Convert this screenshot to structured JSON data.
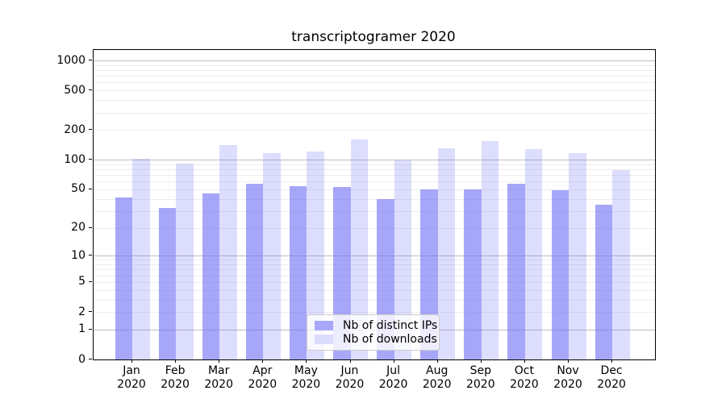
{
  "figure": {
    "title": "transcriptogramer 2020"
  },
  "legend": {
    "items": [
      {
        "label": "Nb of distinct IPs",
        "color": "#a7a7f9"
      },
      {
        "label": "Nb of downloads",
        "color": "#dcdcfc"
      }
    ]
  },
  "y_axis": {
    "tick_values": [
      0,
      1,
      2,
      5,
      10,
      20,
      50,
      100,
      200,
      500,
      1000
    ]
  },
  "x_axis": {
    "months": [
      {
        "month": "Jan",
        "year": "2020"
      },
      {
        "month": "Feb",
        "year": "2020"
      },
      {
        "month": "Mar",
        "year": "2020"
      },
      {
        "month": "Apr",
        "year": "2020"
      },
      {
        "month": "May",
        "year": "2020"
      },
      {
        "month": "Jun",
        "year": "2020"
      },
      {
        "month": "Jul",
        "year": "2020"
      },
      {
        "month": "Aug",
        "year": "2020"
      },
      {
        "month": "Sep",
        "year": "2020"
      },
      {
        "month": "Oct",
        "year": "2020"
      },
      {
        "month": "Nov",
        "year": "2020"
      },
      {
        "month": "Dec",
        "year": "2020"
      }
    ]
  },
  "chart_data": {
    "type": "bar",
    "title": "transcriptogramer 2020",
    "categories": [
      "Jan 2020",
      "Feb 2020",
      "Mar 2020",
      "Apr 2020",
      "May 2020",
      "Jun 2020",
      "Jul 2020",
      "Aug 2020",
      "Sep 2020",
      "Oct 2020",
      "Nov 2020",
      "Dec 2020"
    ],
    "series": [
      {
        "name": "Nb of distinct IPs",
        "values": [
          41,
          32,
          45,
          57,
          54,
          53,
          40,
          50,
          50,
          57,
          49,
          35
        ]
      },
      {
        "name": "Nb of downloads",
        "values": [
          102,
          91,
          141,
          117,
          121,
          160,
          98,
          130,
          155,
          128,
          117,
          79
        ]
      }
    ],
    "xlabel": "",
    "ylabel": "",
    "y_scale": "symlog",
    "y_ticks": [
      0,
      1,
      2,
      5,
      10,
      20,
      50,
      100,
      200,
      500,
      1000
    ],
    "ylim": [
      0,
      1275
    ],
    "grid": "horizontal major + log-minor gridlines",
    "legend_position": "lower center",
    "colors": {
      "distinct_ips_bar": "rgba(115,115,245,0.63)",
      "downloads_bar": "rgba(115,115,245,0.245)",
      "major_gridline": "#bdbdbd",
      "minor_gridline": "#ededed",
      "axis": "#000000"
    }
  }
}
